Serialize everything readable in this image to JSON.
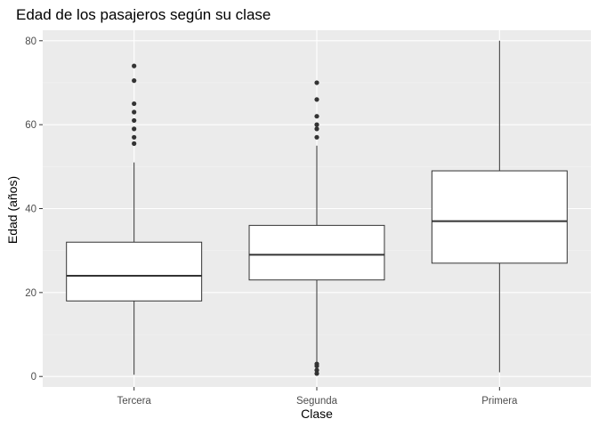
{
  "chart_data": {
    "type": "boxplot",
    "title": "Edad de los pasajeros según su clase",
    "xlabel": "Clase",
    "ylabel": "Edad (años)",
    "categories": [
      "Tercera",
      "Segunda",
      "Primera"
    ],
    "ylim": [
      -2.5,
      82.5
    ],
    "yticks": [
      0,
      20,
      40,
      60,
      80
    ],
    "grid": true,
    "legend": "none",
    "boxes": [
      {
        "category": "Tercera",
        "whisker_low": 0.4,
        "q1": 18,
        "median": 24,
        "q3": 32,
        "whisker_high": 51,
        "outliers": [
          55.5,
          57,
          59,
          61,
          63,
          65,
          70.5,
          74
        ]
      },
      {
        "category": "Segunda",
        "whisker_low": 3.5,
        "q1": 23,
        "median": 29,
        "q3": 36,
        "whisker_high": 55,
        "outliers": [
          0.7,
          1.5,
          2.5,
          3,
          57,
          59,
          60,
          62,
          66,
          70
        ]
      },
      {
        "category": "Primera",
        "whisker_low": 1,
        "q1": 27,
        "median": 37,
        "q3": 49,
        "whisker_high": 80,
        "outliers": []
      }
    ],
    "colors": {
      "panel": "#ebebeb",
      "grid_major": "#ffffff",
      "grid_minor": "#f2f2f2",
      "box_fill": "#ffffff",
      "box_line": "#333333",
      "outlier": "#333333",
      "tick": "#333333"
    }
  }
}
